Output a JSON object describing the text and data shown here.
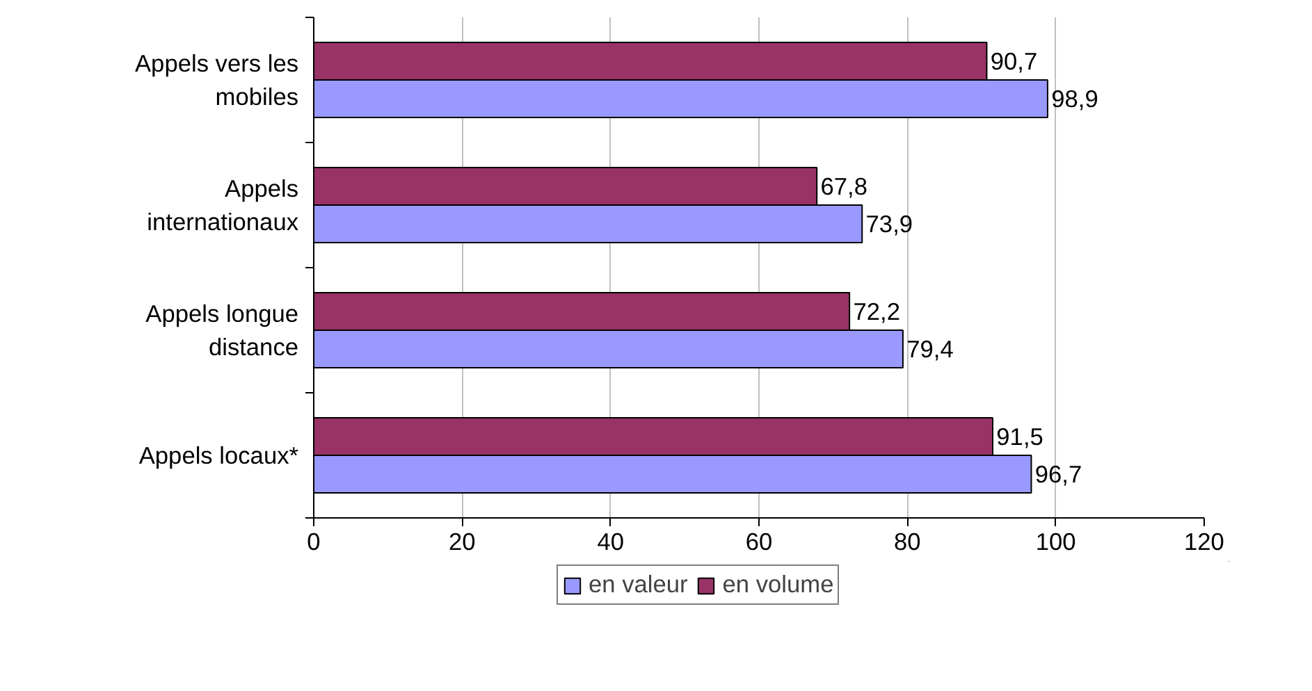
{
  "chart_data": {
    "type": "bar",
    "orientation": "horizontal",
    "categories": [
      "Appels vers les mobiles",
      "Appels internationaux",
      "Appels longue distance",
      "Appels locaux*"
    ],
    "series": [
      {
        "name": "en valeur",
        "color": "#9999ff",
        "values": [
          98.9,
          73.9,
          79.4,
          96.7
        ],
        "value_labels": [
          "98,9",
          "73,9",
          "79,4",
          "96,7"
        ]
      },
      {
        "name": "en volume",
        "color": "#993366",
        "values": [
          90.7,
          67.8,
          72.2,
          91.5
        ],
        "value_labels": [
          "90,7",
          "67,8",
          "72,2",
          "91,5"
        ]
      }
    ],
    "xlim": [
      0,
      120
    ],
    "xticks": [
      0,
      20,
      40,
      60,
      80,
      100,
      120
    ],
    "grid": "x",
    "legend": "bottom"
  }
}
